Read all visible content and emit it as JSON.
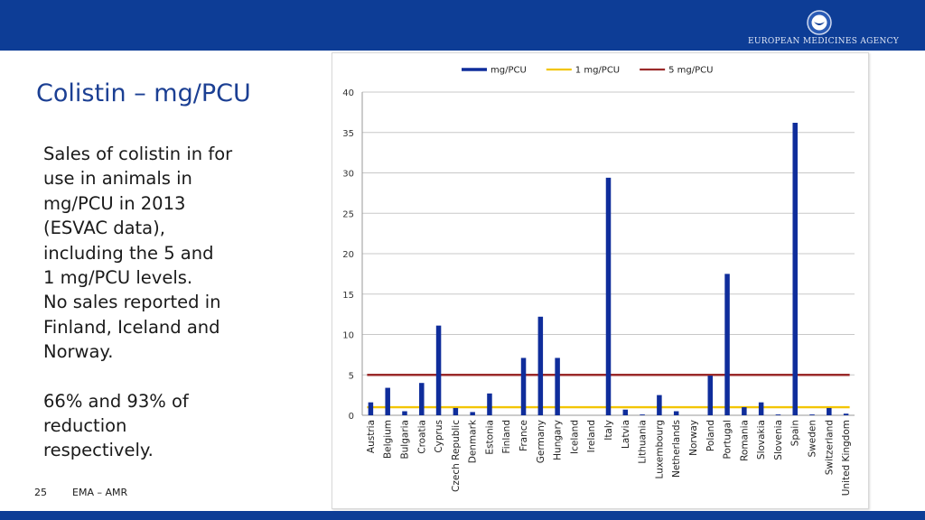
{
  "header": {
    "agency_name": "EUROPEAN MEDICINES AGENCY",
    "brand_color": "#0d3d96",
    "logo_icon": "ema-emblem-icon"
  },
  "slide": {
    "title": "Colistin – mg/PCU",
    "paragraph_1": "Sales of colistin in for\nuse in animals in\nmg/PCU in 2013\n(ESVAC data),\nincluding the 5 and\n1 mg/PCU levels.\nNo sales reported in\nFinland, Iceland and\nNorway.",
    "paragraph_2": "66% and 93% of\nreduction\nrespectively."
  },
  "footer": {
    "page_number": "25",
    "text": "EMA – AMR"
  },
  "chart_data": {
    "type": "bar",
    "categories": [
      "Austria",
      "Belgium",
      "Bulgaria",
      "Croatia",
      "Cyprus",
      "Czech Republic",
      "Denmark",
      "Estonia",
      "Finland",
      "France",
      "Germany",
      "Hungary",
      "Iceland",
      "Ireland",
      "Italy",
      "Latvia",
      "Lithuania",
      "Luxembourg",
      "Netherlands",
      "Norway",
      "Poland",
      "Portugal",
      "Romania",
      "Slovakia",
      "Slovenia",
      "Spain",
      "Sweden",
      "Switzerland",
      "United Kingdom"
    ],
    "series": [
      {
        "name": "mg/PCU",
        "type": "bar",
        "color": "#0f2d9b",
        "values": [
          1.6,
          3.4,
          0.5,
          4.0,
          11.1,
          0.9,
          0.4,
          2.7,
          0,
          7.1,
          12.2,
          7.1,
          0,
          0,
          29.4,
          0.7,
          0.1,
          2.5,
          0.5,
          0,
          4.9,
          17.5,
          1.0,
          1.6,
          0.1,
          36.2,
          0.1,
          0.9,
          0.2
        ]
      },
      {
        "name": "1 mg/PCU",
        "type": "line",
        "color": "#f2c500",
        "value": 1
      },
      {
        "name": "5 mg/PCU",
        "type": "line",
        "color": "#9b2a2a",
        "value": 5
      }
    ],
    "ylim": [
      0,
      40
    ],
    "yticks": [
      0,
      5,
      10,
      15,
      20,
      25,
      30,
      35,
      40
    ],
    "grid": true,
    "legend_position": "top"
  }
}
